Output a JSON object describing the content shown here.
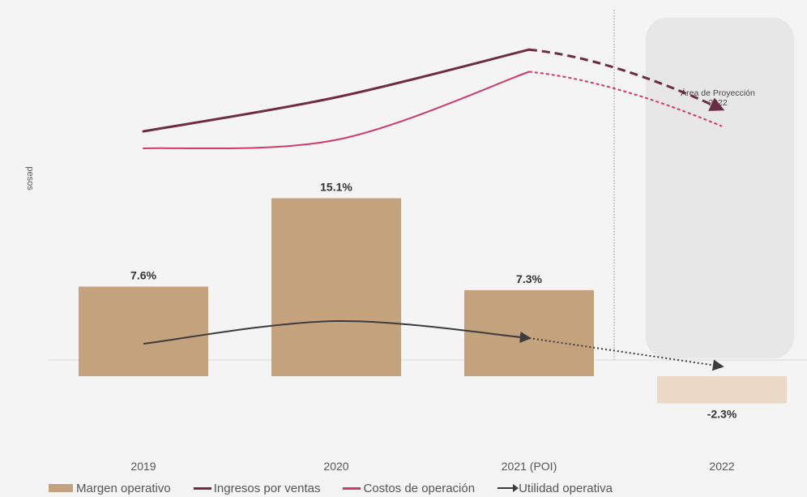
{
  "chart_data": {
    "type": "bar",
    "categories": [
      "2019",
      "2020",
      "2021 (POI)",
      "2022"
    ],
    "ylabel": "pesos",
    "series": [
      {
        "name": "Margen operativo",
        "kind": "bar",
        "values": [
          7.6,
          15.1,
          7.3,
          -2.3
        ],
        "labels": [
          "7.6%",
          "15.1%",
          "7.3%",
          "-2.3%"
        ]
      },
      {
        "name": "Ingresos por ventas",
        "kind": "line",
        "values": [
          100,
          120,
          148,
          113
        ]
      },
      {
        "name": "Costos de operación",
        "kind": "line",
        "values": [
          90,
          95,
          135,
          103
        ]
      },
      {
        "name": "Utilidad operativa",
        "kind": "line",
        "values": [
          1.5,
          2.8,
          1.7,
          -1.4
        ]
      }
    ],
    "projection_label": "Área de Proyección 2022",
    "colors": {
      "bar": "#c4a27e",
      "bar_projected": "#ead9c6",
      "ingresos": "#6e2b46",
      "costos": "#cf3a6c",
      "utilidad": "#3c3c3c",
      "projection_area": "#e7e7e7"
    }
  }
}
